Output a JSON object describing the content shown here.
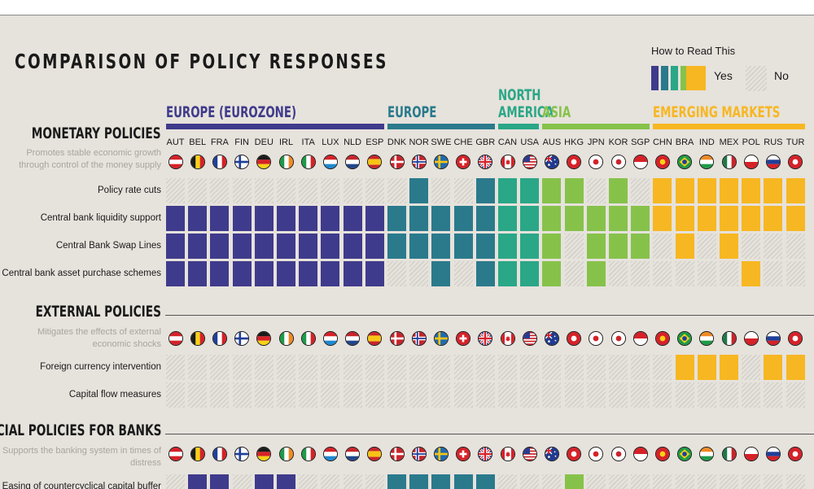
{
  "title": "COMPARISON OF POLICY RESPONSES",
  "legend": {
    "title": "How to Read This",
    "yes_label": "Yes",
    "no_label": "No",
    "yes_colors": [
      "#3f3b8c",
      "#2a7a8c",
      "#2aa787",
      "#86c24a",
      "#f7b722"
    ]
  },
  "colors": {
    "eurozone": "#3f3b8c",
    "europe": "#2a7a8c",
    "north_america": "#2aa787",
    "asia": "#86c24a",
    "emerging": "#f7b722"
  },
  "regions": [
    {
      "key": "eurozone",
      "label": "EUROPE (EUROZONE)",
      "label_lines": [
        "EUROPE (EUROZONE)"
      ],
      "first": 0,
      "last": 9
    },
    {
      "key": "europe",
      "label": "EUROPE",
      "label_lines": [
        "EUROPE"
      ],
      "first": 10,
      "last": 14
    },
    {
      "key": "north_america",
      "label": "NORTH AMERICA",
      "label_lines": [
        "NORTH",
        "AMERICA"
      ],
      "first": 15,
      "last": 16
    },
    {
      "key": "asia",
      "label": "ASIA",
      "label_lines": [
        "ASIA"
      ],
      "first": 17,
      "last": 21
    },
    {
      "key": "emerging",
      "label": "EMERGING MARKETS",
      "label_lines": [
        "EMERGING MARKETS"
      ],
      "first": 22,
      "last": 28
    }
  ],
  "chart_data": {
    "type": "table",
    "countries": [
      "AUT",
      "BEL",
      "FRA",
      "FIN",
      "DEU",
      "IRL",
      "ITA",
      "LUX",
      "NLD",
      "ESP",
      "DNK",
      "NOR",
      "SWE",
      "CHE",
      "GBR",
      "CAN",
      "USA",
      "AUS",
      "HKG",
      "JPN",
      "KOR",
      "SGP",
      "CHN",
      "BRA",
      "IND",
      "MEX",
      "POL",
      "RUS",
      "TUR"
    ],
    "country_region": [
      "eurozone",
      "eurozone",
      "eurozone",
      "eurozone",
      "eurozone",
      "eurozone",
      "eurozone",
      "eurozone",
      "eurozone",
      "eurozone",
      "europe",
      "europe",
      "europe",
      "europe",
      "europe",
      "north_america",
      "north_america",
      "asia",
      "asia",
      "asia",
      "asia",
      "asia",
      "emerging",
      "emerging",
      "emerging",
      "emerging",
      "emerging",
      "emerging",
      "emerging"
    ],
    "sections": [
      {
        "title": "MONETARY POLICIES",
        "subtitle": "Promotes stable economic growth through control of the money supply",
        "policies": [
          {
            "name": "Policy rate cuts",
            "values": [
              0,
              0,
              0,
              0,
              0,
              0,
              0,
              0,
              0,
              0,
              0,
              1,
              0,
              0,
              1,
              1,
              1,
              1,
              1,
              0,
              1,
              0,
              1,
              1,
              1,
              1,
              1,
              1,
              1
            ]
          },
          {
            "name": "Central bank liquidity support",
            "values": [
              1,
              1,
              1,
              1,
              1,
              1,
              1,
              1,
              1,
              1,
              1,
              1,
              1,
              1,
              1,
              1,
              1,
              1,
              1,
              1,
              1,
              1,
              1,
              1,
              1,
              1,
              1,
              1,
              1
            ]
          },
          {
            "name": "Central Bank Swap Lines",
            "values": [
              1,
              1,
              1,
              1,
              1,
              1,
              1,
              1,
              1,
              1,
              1,
              1,
              1,
              1,
              1,
              1,
              1,
              1,
              0,
              1,
              1,
              1,
              0,
              1,
              0,
              1,
              0,
              0,
              0
            ]
          },
          {
            "name": "Central bank asset purchase schemes",
            "values": [
              1,
              1,
              1,
              1,
              1,
              1,
              1,
              1,
              1,
              1,
              0,
              0,
              1,
              0,
              1,
              1,
              1,
              1,
              0,
              1,
              0,
              0,
              0,
              0,
              0,
              0,
              1,
              0,
              0
            ]
          }
        ]
      },
      {
        "title": "EXTERNAL POLICIES",
        "subtitle": "Mitigates the effects of external economic shocks",
        "policies": [
          {
            "name": "Foreign currency intervention",
            "values": [
              0,
              0,
              0,
              0,
              0,
              0,
              0,
              0,
              0,
              0,
              0,
              0,
              0,
              0,
              0,
              0,
              0,
              0,
              0,
              0,
              0,
              0,
              0,
              1,
              1,
              1,
              0,
              1,
              1
            ]
          },
          {
            "name": "Capital flow measures",
            "values": [
              0,
              0,
              0,
              0,
              0,
              0,
              0,
              0,
              0,
              0,
              0,
              0,
              0,
              0,
              0,
              0,
              0,
              0,
              0,
              0,
              0,
              0,
              0,
              0,
              0,
              0,
              0,
              0,
              0
            ]
          }
        ]
      },
      {
        "title": "FINANCIAL POLICIES FOR BANKS",
        "subtitle": "Supports the banking system in times of distress",
        "policies": [
          {
            "name": "Easing of countercyclical capital buffer",
            "values": [
              0,
              1,
              1,
              0,
              1,
              1,
              0,
              0,
              0,
              0,
              1,
              1,
              1,
              1,
              1,
              0,
              0,
              0,
              1,
              0,
              0,
              0,
              0,
              0,
              0,
              0,
              0,
              0,
              0
            ]
          }
        ]
      }
    ]
  }
}
